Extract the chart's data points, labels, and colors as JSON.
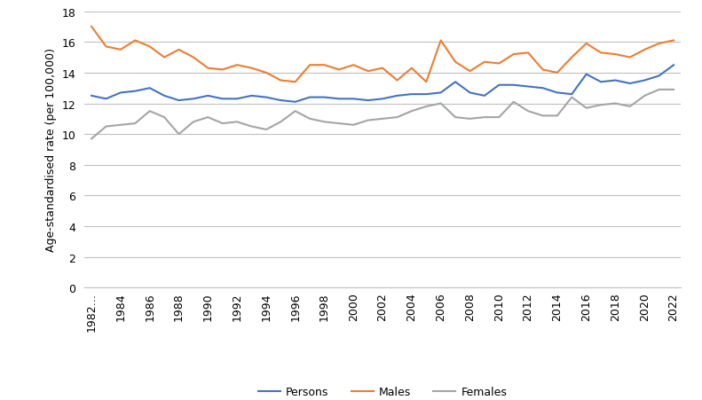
{
  "years": [
    1982,
    1983,
    1984,
    1985,
    1986,
    1987,
    1988,
    1989,
    1990,
    1991,
    1992,
    1993,
    1994,
    1995,
    1996,
    1997,
    1998,
    1999,
    2000,
    2001,
    2002,
    2003,
    2004,
    2005,
    2006,
    2007,
    2008,
    2009,
    2010,
    2011,
    2012,
    2013,
    2014,
    2015,
    2016,
    2017,
    2018,
    2019,
    2020,
    2021,
    2022
  ],
  "persons": [
    12.5,
    12.3,
    12.7,
    12.8,
    13.0,
    12.5,
    12.2,
    12.3,
    12.5,
    12.3,
    12.3,
    12.5,
    12.4,
    12.2,
    12.1,
    12.4,
    12.4,
    12.3,
    12.3,
    12.2,
    12.3,
    12.5,
    12.6,
    12.6,
    12.7,
    13.4,
    12.7,
    12.5,
    13.2,
    13.2,
    13.1,
    13.0,
    12.7,
    12.6,
    13.9,
    13.4,
    13.5,
    13.3,
    13.5,
    13.8,
    14.5
  ],
  "males": [
    17.0,
    15.7,
    15.5,
    16.1,
    15.7,
    15.0,
    15.5,
    15.0,
    14.3,
    14.2,
    14.5,
    14.3,
    14.0,
    13.5,
    13.4,
    14.5,
    14.5,
    14.2,
    14.5,
    14.1,
    14.3,
    13.5,
    14.3,
    13.4,
    16.1,
    14.7,
    14.1,
    14.7,
    14.6,
    15.2,
    15.3,
    14.2,
    14.0,
    15.0,
    15.9,
    15.3,
    15.2,
    15.0,
    15.5,
    15.9,
    16.1
  ],
  "females": [
    9.7,
    10.5,
    10.6,
    10.7,
    11.5,
    11.1,
    10.0,
    10.8,
    11.1,
    10.7,
    10.8,
    10.5,
    10.3,
    10.8,
    11.5,
    11.0,
    10.8,
    10.7,
    10.6,
    10.9,
    11.0,
    11.1,
    11.5,
    11.8,
    12.0,
    11.1,
    11.0,
    11.1,
    11.1,
    12.1,
    11.5,
    11.2,
    11.2,
    12.4,
    11.7,
    11.9,
    12.0,
    11.8,
    12.5,
    12.9,
    12.9
  ],
  "persons_color": "#4472C4",
  "males_color": "#ED7D31",
  "females_color": "#A5A5A5",
  "ylabel": "Age-standardised rate (per 100,000)",
  "ylim": [
    0,
    18
  ],
  "yticks": [
    0,
    2,
    4,
    6,
    8,
    10,
    12,
    14,
    16,
    18
  ],
  "xtick_years": [
    1982,
    1984,
    1986,
    1988,
    1990,
    1992,
    1994,
    1996,
    1998,
    2000,
    2002,
    2004,
    2006,
    2008,
    2010,
    2012,
    2014,
    2016,
    2018,
    2020,
    2022
  ],
  "first_xtick_label": "1982…",
  "legend_labels": [
    "Persons",
    "Males",
    "Females"
  ],
  "line_width": 1.5,
  "grid_color": "#C0C0C0",
  "spine_color": "#C0C0C0"
}
